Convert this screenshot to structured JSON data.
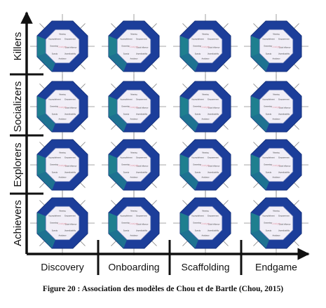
{
  "rows": [
    "Killers",
    "Socializers",
    "Explorers",
    "Achievers"
  ],
  "columns": [
    "Discovery",
    "Onboarding",
    "Scaffolding",
    "Endgame"
  ],
  "octagon": {
    "labels": [
      "Meaning",
      "Accomplishment",
      "Empowerment",
      "Ownership",
      "Social Influence",
      "Scarcity",
      "Unpredictability",
      "Avoidance"
    ],
    "brand": "Octalysis"
  },
  "colors": {
    "outer": "#1c3e9a",
    "outer_dark": "#16327d",
    "teal": "#1f7f8f",
    "inner_fill": "#f1eef7",
    "inner_stroke": "#6d7fb8",
    "axis": "#111111",
    "ray": "#8a8a8a"
  },
  "caption": "Figure 20 : Association des modèles de Chou et de Bartle (Chou, 2015)"
}
